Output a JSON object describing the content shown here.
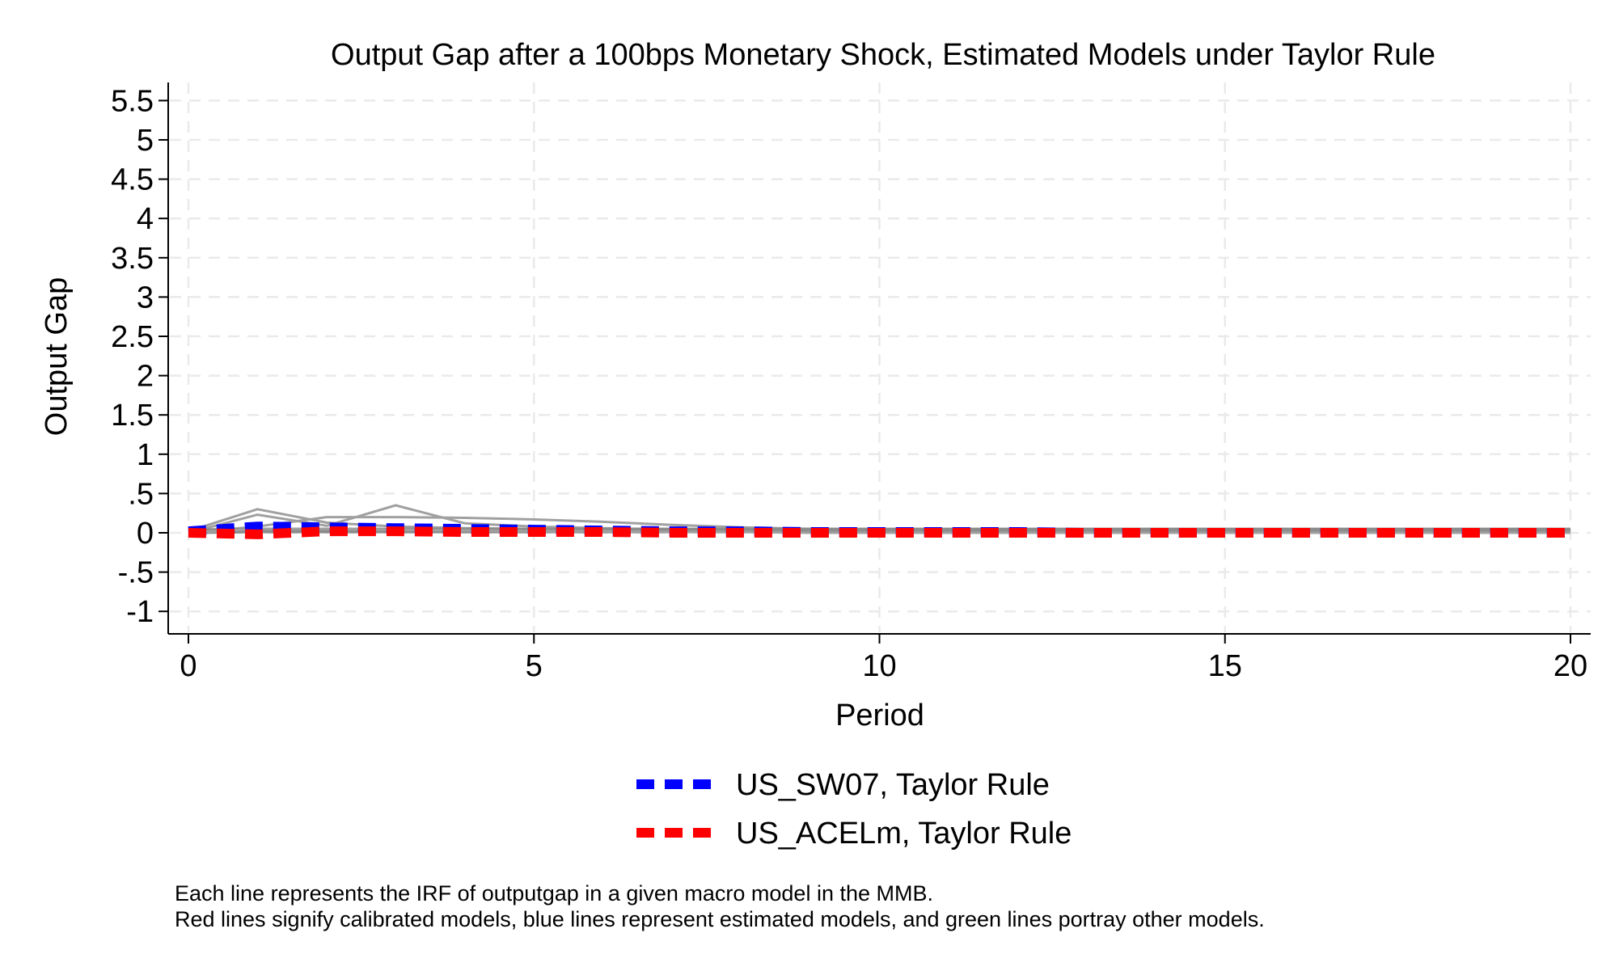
{
  "chart_data": {
    "type": "line",
    "title": "Output Gap after a 100bps Monetary Shock, Estimated Models under Taylor Rule",
    "xlabel": "Period",
    "ylabel": "Output Gap",
    "xlim": [
      0,
      20
    ],
    "ylim": [
      -1,
      5.5
    ],
    "x_ticks": [
      0,
      5,
      10,
      15,
      20
    ],
    "x_tick_labels": [
      "0",
      "5",
      "10",
      "15",
      "20"
    ],
    "y_ticks": [
      -1,
      -0.5,
      0,
      0.5,
      1,
      1.5,
      2,
      2.5,
      3,
      3.5,
      4,
      4.5,
      5,
      5.5
    ],
    "y_tick_labels": [
      "-1",
      "-.5",
      "0",
      ".5",
      "1",
      "1.5",
      "2",
      "2.5",
      "3",
      "3.5",
      "4",
      "4.5",
      "5",
      "5.5"
    ],
    "grid": true,
    "legend_position": "bottom",
    "x": [
      0,
      1,
      2,
      3,
      4,
      5,
      6,
      7,
      8,
      9,
      10,
      11,
      12,
      13,
      14,
      15,
      16,
      17,
      18,
      19,
      20
    ],
    "background_series": [
      {
        "color": "#a0a0a0",
        "values": [
          0.02,
          0.3,
          0.13,
          0.08,
          0.06,
          0.05,
          0.04,
          0.03,
          0.02,
          0.02,
          0.01,
          0.01,
          0.01,
          0.01,
          0.0,
          0.0,
          0.0,
          0.0,
          0.0,
          0.0,
          0.0
        ]
      },
      {
        "color": "#a0a0a0",
        "values": [
          0.0,
          0.23,
          0.09,
          0.35,
          0.12,
          0.08,
          0.06,
          0.04,
          0.03,
          0.02,
          0.02,
          0.01,
          0.01,
          0.01,
          0.0,
          0.0,
          0.0,
          0.0,
          0.0,
          0.0,
          0.0
        ]
      },
      {
        "color": "#a0a0a0",
        "values": [
          0.0,
          0.08,
          0.2,
          0.2,
          0.19,
          0.17,
          0.14,
          0.1,
          0.07,
          0.05,
          0.04,
          0.03,
          0.02,
          0.02,
          0.01,
          0.01,
          0.01,
          0.0,
          0.0,
          0.0,
          0.0
        ]
      },
      {
        "color": "#8c8c8c",
        "values": [
          0.02,
          0.03,
          0.03,
          0.03,
          0.03,
          0.03,
          0.03,
          0.03,
          0.03,
          0.03,
          0.03,
          0.03,
          0.03,
          0.03,
          0.03,
          0.03,
          0.03,
          0.03,
          0.03,
          0.03,
          0.03
        ]
      },
      {
        "color": "#a0a0a0",
        "values": [
          0.0,
          0.05,
          0.05,
          0.04,
          0.03,
          0.02,
          0.02,
          0.01,
          0.01,
          0.0,
          0.0,
          0.0,
          0.0,
          0.0,
          0.0,
          0.0,
          0.0,
          0.0,
          0.0,
          0.0,
          0.0
        ]
      }
    ],
    "series": [
      {
        "name": "US_SW07, Taylor Rule",
        "color": "#0000ff",
        "values": [
          0.02,
          0.08,
          0.07,
          0.06,
          0.05,
          0.04,
          0.03,
          0.02,
          0.02,
          0.01,
          0.01,
          0.01,
          0.01,
          0.0,
          0.0,
          0.0,
          0.0,
          0.0,
          0.0,
          0.0,
          0.0
        ]
      },
      {
        "name": "US_ACELm, Taylor Rule",
        "color": "#ff0000",
        "values": [
          0.0,
          -0.02,
          0.02,
          0.02,
          0.01,
          0.01,
          0.01,
          0.0,
          0.0,
          0.0,
          0.0,
          0.0,
          0.0,
          0.0,
          0.0,
          0.0,
          0.0,
          0.0,
          0.0,
          0.0,
          0.0
        ]
      }
    ],
    "notes": [
      "Each line represents the IRF of outputgap in a given macro model in the MMB.",
      "Red lines signify calibrated models, blue lines represent estimated models, and green lines portray other models."
    ]
  }
}
